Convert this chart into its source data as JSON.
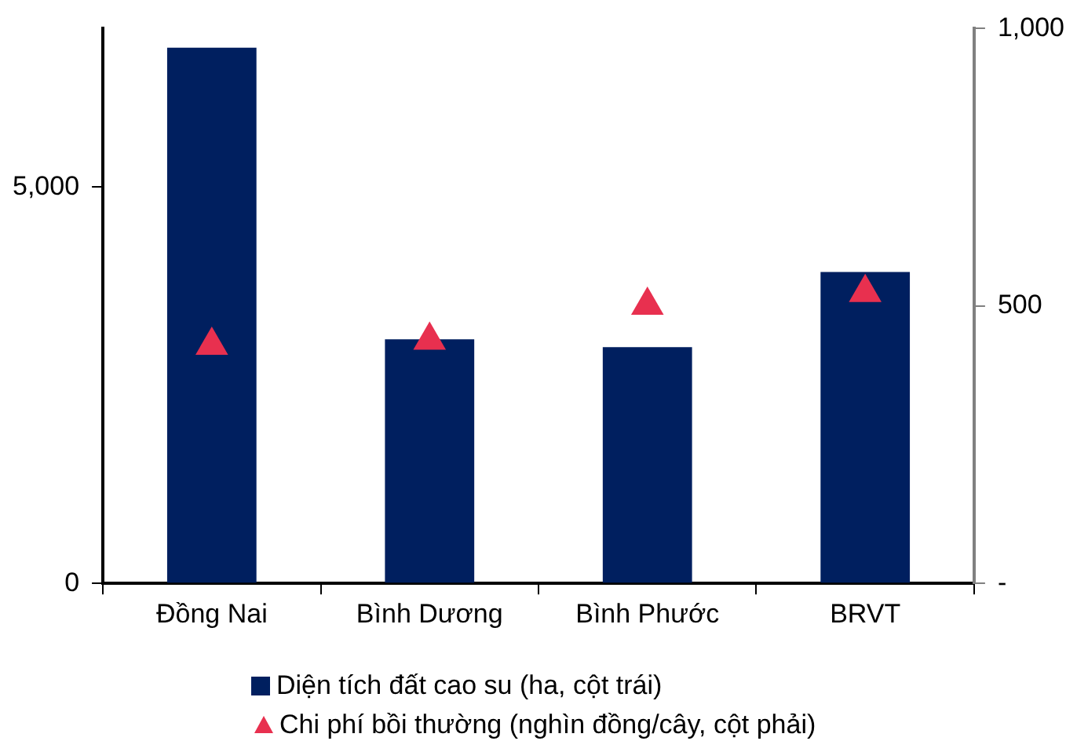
{
  "chart_data": {
    "type": "bar",
    "categories": [
      "Đồng Nai",
      "Bình Dương",
      "Bình Phước",
      "BRVT"
    ],
    "series": [
      {
        "name": "Diện tích đất cao su (ha, cột trái)",
        "color": "#001f5f",
        "values": [
          6760,
          3080,
          2980,
          3930
        ]
      },
      {
        "name": "Chi phí bồi thường (nghìn đồng/cây, cột phải)",
        "type": "scatter",
        "axis": "y2",
        "color": "#e8304f",
        "x": [
          "Đồng Nai",
          "Bình Dương",
          "Bình Phước",
          "BRVT"
        ],
        "values": [
          429,
          438,
          501,
          524
        ]
      }
    ],
    "ylim": [
      0,
      7000
    ],
    "yticks": [
      0,
      {
        "value": 5000,
        "label": "5,000"
      }
    ],
    "y2lim": [
      0,
      1000
    ],
    "y2ticks": [
      {
        "value": 0,
        "label": "-"
      },
      {
        "value": 500,
        "label": "500"
      },
      {
        "value": 1000,
        "label": "1,000"
      }
    ],
    "marker": "triangle",
    "legend": "bottom",
    "grid": false
  }
}
